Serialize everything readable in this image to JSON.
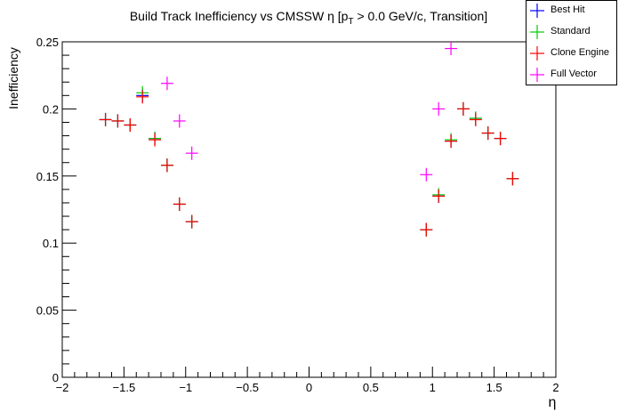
{
  "chart_data": {
    "type": "scatter",
    "title": "Build Track Inefficiency vs CMSSW η [p_T > 0.0 GeV/c, Transition]",
    "title_parts": {
      "before": "Build Track Inefficiency vs CMSSW η [p",
      "sub": "T",
      "after": " > 0.0 GeV/c, Transition]"
    },
    "xlabel": "η",
    "ylabel": "Inefficiency",
    "xlim": [
      -2,
      2
    ],
    "ylim": [
      0,
      0.25
    ],
    "xticks": [
      "−2",
      "−1.5",
      "−1",
      "−0.5",
      "0",
      "0.5",
      "1",
      "1.5",
      "2"
    ],
    "xtick_values": [
      -2,
      -1.5,
      -1,
      -0.5,
      0,
      0.5,
      1,
      1.5,
      2
    ],
    "yticks": [
      "0",
      "0.05",
      "0.1",
      "0.15",
      "0.2",
      "0.25"
    ],
    "ytick_values": [
      0,
      0.05,
      0.1,
      0.15,
      0.2,
      0.25
    ],
    "grid": false,
    "legend_position": "top-right",
    "series": [
      {
        "name": "Best Hit",
        "color": "#0000ff",
        "x": [
          -1.65,
          -1.55,
          -1.45,
          -1.35,
          -1.25,
          -1.15,
          -1.05,
          -0.95,
          0.95,
          1.05,
          1.15,
          1.25,
          1.35,
          1.45,
          1.55,
          1.65
        ],
        "y": [
          0.192,
          0.191,
          0.188,
          0.21,
          0.178,
          0.158,
          0.129,
          0.116,
          0.11,
          0.135,
          0.176,
          0.2,
          0.193,
          0.182,
          0.178,
          0.148
        ]
      },
      {
        "name": "Standard",
        "color": "#00cc00",
        "x": [
          -1.65,
          -1.55,
          -1.45,
          -1.35,
          -1.25,
          -1.15,
          -1.05,
          -0.95,
          0.95,
          1.05,
          1.15,
          1.25,
          1.35,
          1.45,
          1.55,
          1.65
        ],
        "y": [
          0.192,
          0.191,
          0.188,
          0.212,
          0.178,
          0.158,
          0.129,
          0.116,
          0.11,
          0.136,
          0.177,
          0.2,
          0.193,
          0.182,
          0.178,
          0.148
        ]
      },
      {
        "name": "Clone Engine",
        "color": "#ff0000",
        "x": [
          -1.65,
          -1.55,
          -1.45,
          -1.35,
          -1.25,
          -1.15,
          -1.05,
          -0.95,
          0.95,
          1.05,
          1.15,
          1.25,
          1.35,
          1.45,
          1.55,
          1.65
        ],
        "y": [
          0.192,
          0.191,
          0.188,
          0.209,
          0.177,
          0.158,
          0.129,
          0.116,
          0.11,
          0.135,
          0.176,
          0.2,
          0.192,
          0.182,
          0.178,
          0.148
        ]
      },
      {
        "name": "Full Vector",
        "color": "#ff00ff",
        "x": [
          -1.15,
          -1.05,
          -0.95,
          0.95,
          1.05,
          1.15
        ],
        "y": [
          0.219,
          0.191,
          0.167,
          0.151,
          0.2,
          0.245
        ]
      }
    ]
  }
}
